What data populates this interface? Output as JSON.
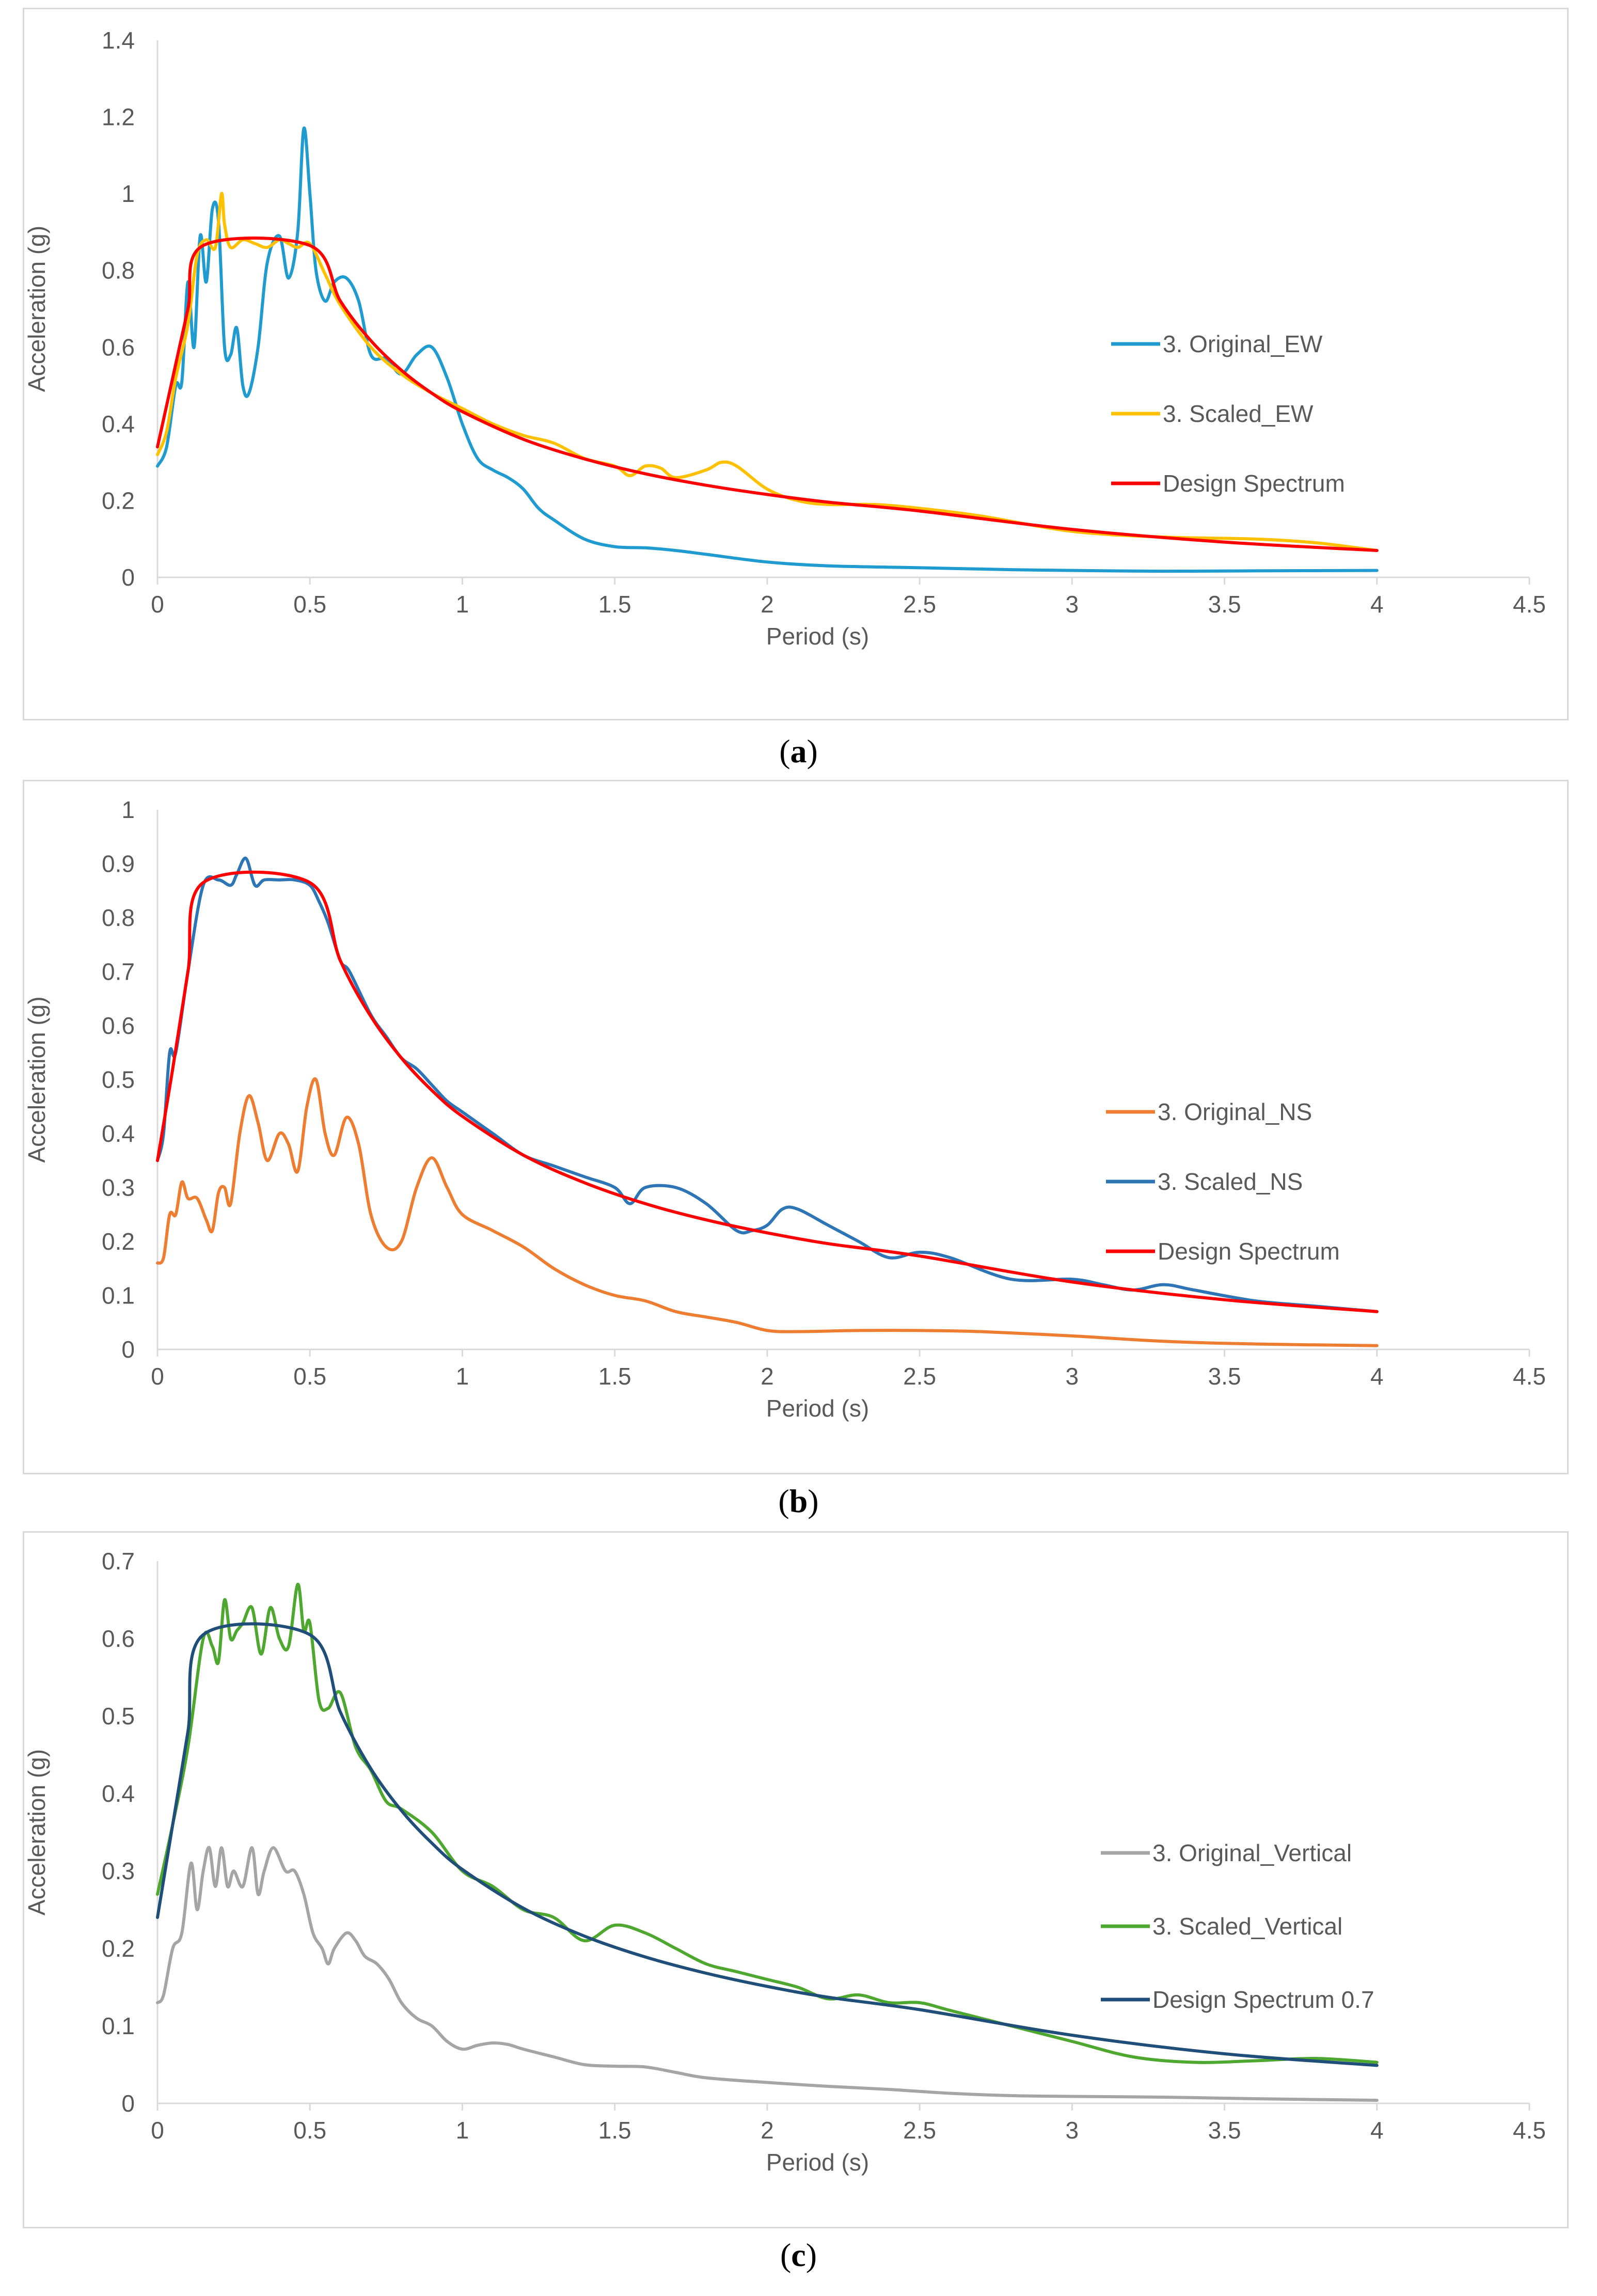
{
  "captions": {
    "a": {
      "open": "(",
      "letter": "a",
      "close": ")"
    },
    "b": {
      "open": "(",
      "letter": "b",
      "close": ")"
    },
    "c": {
      "open": "(",
      "letter": "c",
      "close": ")"
    }
  },
  "chart_data": [
    {
      "id": "a",
      "type": "line",
      "xlabel": "Period (s)",
      "ylabel": "Acceleration (g)",
      "xlim": [
        0,
        4.5
      ],
      "ylim": [
        0,
        1.4
      ],
      "xticks": [
        "0",
        "0.5",
        "1",
        "1.5",
        "2",
        "2.5",
        "3",
        "3.5",
        "4",
        "4.5"
      ],
      "yticks": [
        "0",
        "0.2",
        "0.4",
        "0.6",
        "0.8",
        "1",
        "1.2",
        "1.4"
      ],
      "legend_position": "right",
      "series": [
        {
          "name": "3. Original_EW",
          "color": "#1f9bd0",
          "x": [
            0,
            0.03,
            0.06,
            0.08,
            0.1,
            0.12,
            0.14,
            0.16,
            0.18,
            0.2,
            0.22,
            0.24,
            0.26,
            0.28,
            0.3,
            0.33,
            0.36,
            0.4,
            0.43,
            0.46,
            0.48,
            0.5,
            0.52,
            0.55,
            0.58,
            0.62,
            0.66,
            0.7,
            0.75,
            0.8,
            0.85,
            0.9,
            0.95,
            1.0,
            1.05,
            1.1,
            1.15,
            1.2,
            1.25,
            1.3,
            1.4,
            1.5,
            1.6,
            1.7,
            1.8,
            2.0,
            2.2,
            2.5,
            2.8,
            3.0,
            3.3,
            3.6,
            4.0
          ],
          "values": [
            0.29,
            0.34,
            0.5,
            0.51,
            0.77,
            0.6,
            0.89,
            0.77,
            0.96,
            0.93,
            0.6,
            0.58,
            0.65,
            0.5,
            0.48,
            0.6,
            0.82,
            0.89,
            0.78,
            0.9,
            1.17,
            1.0,
            0.8,
            0.72,
            0.77,
            0.78,
            0.72,
            0.58,
            0.57,
            0.53,
            0.58,
            0.6,
            0.52,
            0.4,
            0.31,
            0.28,
            0.26,
            0.23,
            0.18,
            0.15,
            0.1,
            0.08,
            0.077,
            0.07,
            0.06,
            0.04,
            0.03,
            0.025,
            0.02,
            0.018,
            0.016,
            0.017,
            0.018
          ]
        },
        {
          "name": "3. Scaled_EW",
          "color": "#ffc000",
          "x": [
            0,
            0.03,
            0.06,
            0.1,
            0.13,
            0.16,
            0.19,
            0.21,
            0.22,
            0.24,
            0.28,
            0.32,
            0.36,
            0.4,
            0.43,
            0.46,
            0.5,
            0.55,
            0.6,
            0.7,
            0.8,
            0.9,
            1.0,
            1.1,
            1.2,
            1.3,
            1.4,
            1.5,
            1.55,
            1.6,
            1.65,
            1.7,
            1.8,
            1.85,
            1.9,
            2.0,
            2.1,
            2.2,
            2.35,
            2.5,
            2.7,
            3.0,
            3.3,
            3.6,
            3.8,
            4.0
          ],
          "values": [
            0.32,
            0.38,
            0.52,
            0.66,
            0.84,
            0.88,
            0.86,
            1.0,
            0.92,
            0.86,
            0.88,
            0.87,
            0.86,
            0.88,
            0.87,
            0.86,
            0.87,
            0.79,
            0.71,
            0.6,
            0.53,
            0.48,
            0.44,
            0.4,
            0.37,
            0.35,
            0.31,
            0.29,
            0.265,
            0.29,
            0.285,
            0.26,
            0.28,
            0.3,
            0.29,
            0.23,
            0.2,
            0.19,
            0.19,
            0.18,
            0.16,
            0.12,
            0.105,
            0.1,
            0.09,
            0.07
          ]
        },
        {
          "name": "Design Spectrum",
          "color": "#ff0000",
          "x": [
            0,
            0.05,
            0.1,
            0.15,
            0.5,
            0.6,
            0.7,
            0.8,
            0.9,
            1.0,
            1.2,
            1.4,
            1.6,
            1.8,
            2.0,
            2.2,
            2.5,
            3.0,
            3.5,
            4.0
          ],
          "values": [
            0.34,
            0.52,
            0.7,
            0.865,
            0.865,
            0.72,
            0.617,
            0.54,
            0.48,
            0.432,
            0.36,
            0.309,
            0.27,
            0.24,
            0.216,
            0.196,
            0.173,
            0.125,
            0.092,
            0.07
          ]
        }
      ]
    },
    {
      "id": "b",
      "type": "line",
      "xlabel": "Period (s)",
      "ylabel": "Acceleration (g)",
      "xlim": [
        0,
        4.5
      ],
      "ylim": [
        0,
        1
      ],
      "xticks": [
        "0",
        "0.5",
        "1",
        "1.5",
        "2",
        "2.5",
        "3",
        "3.5",
        "4",
        "4.5"
      ],
      "yticks": [
        "0",
        "0.1",
        "0.2",
        "0.3",
        "0.4",
        "0.5",
        "0.6",
        "0.7",
        "0.8",
        "0.9",
        "1"
      ],
      "legend_position": "right",
      "series": [
        {
          "name": "3. Original_NS",
          "color": "#ed7d31",
          "x": [
            0,
            0.02,
            0.04,
            0.06,
            0.08,
            0.1,
            0.13,
            0.16,
            0.18,
            0.2,
            0.22,
            0.24,
            0.27,
            0.3,
            0.33,
            0.36,
            0.4,
            0.43,
            0.46,
            0.49,
            0.52,
            0.55,
            0.58,
            0.62,
            0.66,
            0.7,
            0.75,
            0.8,
            0.85,
            0.9,
            0.95,
            1.0,
            1.1,
            1.2,
            1.3,
            1.4,
            1.5,
            1.6,
            1.7,
            1.8,
            1.9,
            2.0,
            2.1,
            2.3,
            2.5,
            2.7,
            3.0,
            3.3,
            3.6,
            4.0
          ],
          "values": [
            0.16,
            0.17,
            0.25,
            0.25,
            0.31,
            0.28,
            0.28,
            0.24,
            0.22,
            0.29,
            0.3,
            0.27,
            0.4,
            0.47,
            0.42,
            0.35,
            0.4,
            0.38,
            0.33,
            0.45,
            0.5,
            0.4,
            0.36,
            0.43,
            0.38,
            0.25,
            0.19,
            0.2,
            0.3,
            0.355,
            0.3,
            0.25,
            0.22,
            0.19,
            0.15,
            0.12,
            0.1,
            0.09,
            0.07,
            0.06,
            0.05,
            0.035,
            0.033,
            0.035,
            0.035,
            0.033,
            0.025,
            0.015,
            0.01,
            0.007
          ]
        },
        {
          "name": "3. Scaled_NS",
          "color": "#2e75b6",
          "x": [
            0,
            0.02,
            0.04,
            0.06,
            0.1,
            0.15,
            0.2,
            0.24,
            0.26,
            0.29,
            0.32,
            0.35,
            0.4,
            0.45,
            0.5,
            0.53,
            0.56,
            0.6,
            0.63,
            0.7,
            0.75,
            0.8,
            0.85,
            0.9,
            0.95,
            1.0,
            1.1,
            1.2,
            1.3,
            1.4,
            1.5,
            1.55,
            1.6,
            1.7,
            1.8,
            1.9,
            1.95,
            2.0,
            2.05,
            2.1,
            2.2,
            2.3,
            2.4,
            2.5,
            2.6,
            2.8,
            3.0,
            3.1,
            3.2,
            3.3,
            3.4,
            3.6,
            3.8,
            4.0
          ],
          "values": [
            0.35,
            0.4,
            0.55,
            0.55,
            0.7,
            0.86,
            0.87,
            0.86,
            0.88,
            0.91,
            0.86,
            0.87,
            0.87,
            0.87,
            0.86,
            0.83,
            0.79,
            0.72,
            0.7,
            0.62,
            0.58,
            0.54,
            0.52,
            0.49,
            0.46,
            0.44,
            0.4,
            0.36,
            0.34,
            0.32,
            0.3,
            0.27,
            0.3,
            0.3,
            0.27,
            0.22,
            0.22,
            0.23,
            0.26,
            0.26,
            0.23,
            0.2,
            0.17,
            0.18,
            0.17,
            0.13,
            0.13,
            0.12,
            0.11,
            0.12,
            0.11,
            0.09,
            0.08,
            0.07
          ]
        },
        {
          "name": "Design Spectrum",
          "color": "#ff0000",
          "x": [
            0,
            0.05,
            0.1,
            0.15,
            0.5,
            0.6,
            0.7,
            0.8,
            0.9,
            1.0,
            1.2,
            1.4,
            1.6,
            1.8,
            2.0,
            2.2,
            2.5,
            3.0,
            3.5,
            4.0
          ],
          "values": [
            0.35,
            0.52,
            0.7,
            0.865,
            0.865,
            0.72,
            0.617,
            0.54,
            0.48,
            0.432,
            0.36,
            0.309,
            0.27,
            0.24,
            0.216,
            0.196,
            0.173,
            0.125,
            0.092,
            0.07
          ]
        }
      ]
    },
    {
      "id": "c",
      "type": "line",
      "xlabel": "Period (s)",
      "ylabel": "Acceleration (g)",
      "xlim": [
        0,
        4.5
      ],
      "ylim": [
        0,
        0.7
      ],
      "xticks": [
        "0",
        "0.5",
        "1",
        "1.5",
        "2",
        "2.5",
        "3",
        "3.5",
        "4",
        "4.5"
      ],
      "yticks": [
        "0",
        "0.1",
        "0.2",
        "0.3",
        "0.4",
        "0.5",
        "0.6",
        "0.7"
      ],
      "legend_position": "right",
      "series": [
        {
          "name": "3. Original_Vertical",
          "color": "#a5a5a5",
          "x": [
            0,
            0.02,
            0.05,
            0.08,
            0.11,
            0.13,
            0.15,
            0.17,
            0.19,
            0.21,
            0.23,
            0.25,
            0.28,
            0.31,
            0.33,
            0.35,
            0.38,
            0.42,
            0.45,
            0.48,
            0.51,
            0.54,
            0.56,
            0.58,
            0.62,
            0.65,
            0.68,
            0.72,
            0.76,
            0.8,
            0.85,
            0.9,
            0.95,
            1.0,
            1.05,
            1.1,
            1.15,
            1.2,
            1.3,
            1.4,
            1.5,
            1.6,
            1.7,
            1.8,
            2.0,
            2.2,
            2.4,
            2.6,
            2.8,
            3.0,
            3.3,
            3.6,
            4.0
          ],
          "values": [
            0.13,
            0.14,
            0.2,
            0.22,
            0.31,
            0.25,
            0.3,
            0.33,
            0.28,
            0.33,
            0.28,
            0.3,
            0.28,
            0.33,
            0.27,
            0.3,
            0.33,
            0.3,
            0.3,
            0.27,
            0.22,
            0.2,
            0.18,
            0.2,
            0.22,
            0.21,
            0.19,
            0.18,
            0.16,
            0.13,
            0.11,
            0.1,
            0.08,
            0.07,
            0.075,
            0.078,
            0.076,
            0.07,
            0.06,
            0.05,
            0.048,
            0.047,
            0.04,
            0.033,
            0.027,
            0.022,
            0.018,
            0.013,
            0.01,
            0.009,
            0.008,
            0.006,
            0.004
          ]
        },
        {
          "name": "3. Scaled_Vertical",
          "color": "#4ea72e",
          "x": [
            0,
            0.05,
            0.1,
            0.15,
            0.18,
            0.2,
            0.22,
            0.24,
            0.26,
            0.28,
            0.31,
            0.34,
            0.37,
            0.4,
            0.43,
            0.46,
            0.48,
            0.5,
            0.53,
            0.56,
            0.6,
            0.65,
            0.7,
            0.75,
            0.8,
            0.9,
            1.0,
            1.1,
            1.2,
            1.3,
            1.4,
            1.5,
            1.6,
            1.7,
            1.8,
            1.9,
            2.0,
            2.1,
            2.2,
            2.3,
            2.4,
            2.5,
            2.6,
            2.8,
            3.0,
            3.2,
            3.4,
            3.6,
            3.8,
            4.0
          ],
          "values": [
            0.27,
            0.36,
            0.46,
            0.6,
            0.59,
            0.57,
            0.65,
            0.6,
            0.61,
            0.62,
            0.64,
            0.58,
            0.64,
            0.6,
            0.59,
            0.67,
            0.61,
            0.62,
            0.52,
            0.51,
            0.53,
            0.46,
            0.43,
            0.39,
            0.38,
            0.35,
            0.3,
            0.28,
            0.25,
            0.24,
            0.21,
            0.23,
            0.22,
            0.2,
            0.18,
            0.17,
            0.16,
            0.15,
            0.135,
            0.14,
            0.13,
            0.13,
            0.12,
            0.1,
            0.08,
            0.06,
            0.053,
            0.055,
            0.058,
            0.053
          ]
        },
        {
          "name": "Design Spectrum 0.7",
          "color": "#1f4e79",
          "x": [
            0,
            0.05,
            0.1,
            0.15,
            0.5,
            0.6,
            0.7,
            0.8,
            0.9,
            1.0,
            1.2,
            1.4,
            1.6,
            1.8,
            2.0,
            2.2,
            2.5,
            3.0,
            3.5,
            4.0
          ],
          "values": [
            0.24,
            0.36,
            0.48,
            0.605,
            0.605,
            0.505,
            0.432,
            0.378,
            0.336,
            0.302,
            0.252,
            0.216,
            0.189,
            0.168,
            0.151,
            0.137,
            0.121,
            0.088,
            0.064,
            0.049
          ]
        }
      ]
    }
  ]
}
